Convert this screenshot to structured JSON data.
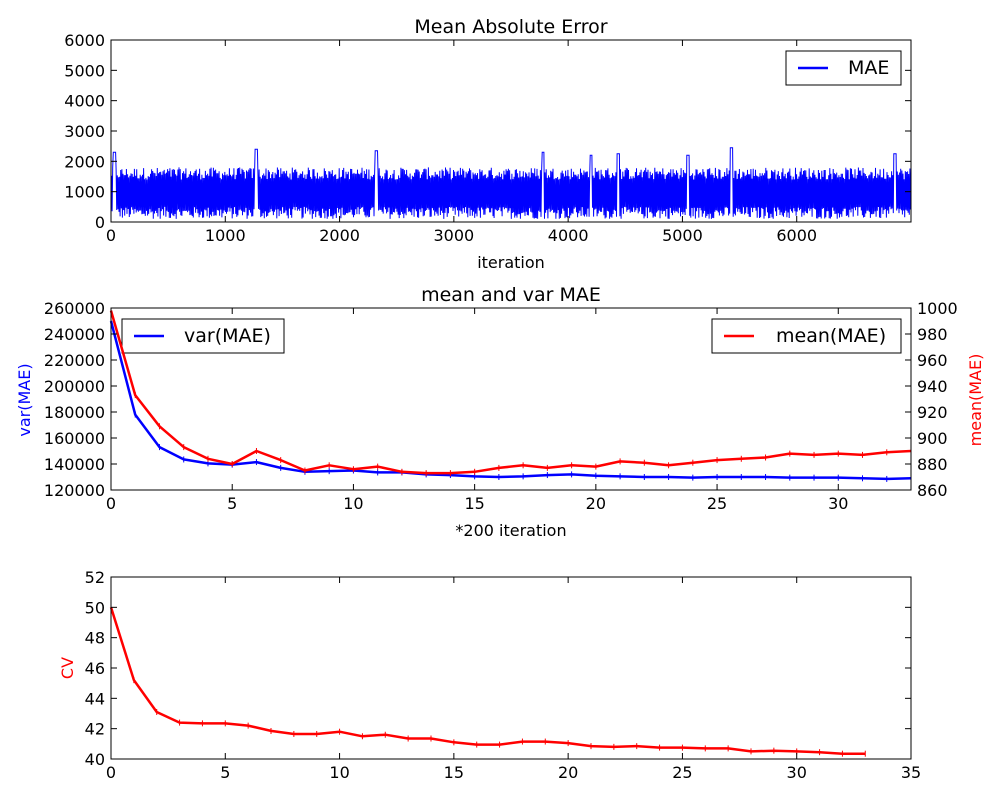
{
  "chart_data": [
    {
      "type": "line",
      "title": "Mean Absolute Error",
      "xlabel": "iteration",
      "ylabel": "",
      "xlim": [
        0,
        7000
      ],
      "ylim": [
        0,
        6000
      ],
      "xticks": [
        "0",
        "1000",
        "2000",
        "3000",
        "4000",
        "5000",
        "6000"
      ],
      "yticks": [
        "0",
        "1000",
        "2000",
        "3000",
        "4000",
        "5000",
        "6000"
      ],
      "grid": false,
      "legend": "top-right",
      "series": [
        {
          "name": "MAE",
          "color": "#0000ff",
          "description_range": [
            0,
            2400
          ],
          "typical_band": [
            250,
            1700
          ],
          "peaks": [
            {
              "x": 30,
              "y": 2300
            },
            {
              "x": 1270,
              "y": 2400
            },
            {
              "x": 2320,
              "y": 2350
            },
            {
              "x": 3780,
              "y": 2300
            },
            {
              "x": 4200,
              "y": 2200
            },
            {
              "x": 4440,
              "y": 2250
            },
            {
              "x": 5050,
              "y": 2200
            },
            {
              "x": 5430,
              "y": 2450
            },
            {
              "x": 6860,
              "y": 2250
            }
          ]
        }
      ]
    },
    {
      "type": "line",
      "title": "mean and var MAE",
      "xlabel": "*200 iteration",
      "ylabel": "var(MAE)",
      "ylabel_right": "mean(MAE)",
      "xlim": [
        0,
        33
      ],
      "ylim": [
        120000,
        260000
      ],
      "ylim_right": [
        860,
        1000
      ],
      "xticks": [
        "0",
        "5",
        "10",
        "15",
        "20",
        "25",
        "30"
      ],
      "yticks": [
        "120000",
        "140000",
        "160000",
        "180000",
        "200000",
        "220000",
        "240000",
        "260000"
      ],
      "yticks_right": [
        "860",
        "880",
        "900",
        "920",
        "940",
        "960",
        "980",
        "1000"
      ],
      "grid": false,
      "series": [
        {
          "name": "var(MAE)",
          "axis": "left",
          "color": "#0000ff",
          "legend": "top-left",
          "x": [
            0,
            1,
            2,
            3,
            4,
            5,
            6,
            7,
            8,
            9,
            10,
            11,
            12,
            13,
            14,
            15,
            16,
            17,
            18,
            19,
            20,
            21,
            22,
            23,
            24,
            25,
            26,
            27,
            28,
            29,
            30,
            31,
            32,
            33
          ],
          "values": [
            250000,
            178000,
            153000,
            143500,
            140500,
            139500,
            141500,
            137000,
            134000,
            134500,
            135000,
            133500,
            133500,
            132000,
            131500,
            130500,
            130000,
            130500,
            131500,
            132000,
            131000,
            130500,
            130000,
            130000,
            129500,
            130000,
            130000,
            130000,
            129500,
            129500,
            129500,
            129000,
            128500,
            129000
          ]
        },
        {
          "name": "mean(MAE)",
          "axis": "right",
          "color": "#ff0000",
          "legend": "top-right",
          "x": [
            0,
            1,
            2,
            3,
            4,
            5,
            6,
            7,
            8,
            9,
            10,
            11,
            12,
            13,
            14,
            15,
            16,
            17,
            18,
            19,
            20,
            21,
            22,
            23,
            24,
            25,
            26,
            27,
            28,
            29,
            30,
            31,
            32,
            33
          ],
          "values": [
            998,
            933,
            909,
            893,
            884,
            880,
            890,
            883,
            875,
            879,
            876,
            878,
            874,
            873,
            873,
            874,
            877,
            879,
            877,
            879,
            878,
            882,
            881,
            879,
            881,
            883,
            884,
            885,
            888,
            887,
            888,
            887,
            889,
            890
          ]
        }
      ]
    },
    {
      "type": "line",
      "title": "",
      "xlabel": "",
      "ylabel": "CV",
      "xlim": [
        0,
        35
      ],
      "ylim": [
        40,
        52
      ],
      "xticks": [
        "0",
        "5",
        "10",
        "15",
        "20",
        "25",
        "30",
        "35"
      ],
      "yticks": [
        "40",
        "42",
        "44",
        "46",
        "48",
        "50",
        "52"
      ],
      "grid": false,
      "series": [
        {
          "color": "#ff0000",
          "x": [
            0,
            1,
            2,
            3,
            4,
            5,
            6,
            7,
            8,
            9,
            10,
            11,
            12,
            13,
            14,
            15,
            16,
            17,
            18,
            19,
            20,
            21,
            22,
            23,
            24,
            25,
            26,
            27,
            28,
            29,
            30,
            31,
            32,
            33
          ],
          "values": [
            50.0,
            45.2,
            43.1,
            42.4,
            42.35,
            42.35,
            42.2,
            41.85,
            41.65,
            41.65,
            41.8,
            41.5,
            41.6,
            41.35,
            41.35,
            41.1,
            40.95,
            40.95,
            41.15,
            41.15,
            41.05,
            40.85,
            40.8,
            40.85,
            40.75,
            40.75,
            40.7,
            40.7,
            40.5,
            40.55,
            40.5,
            40.45,
            40.35,
            40.35
          ]
        }
      ]
    }
  ]
}
